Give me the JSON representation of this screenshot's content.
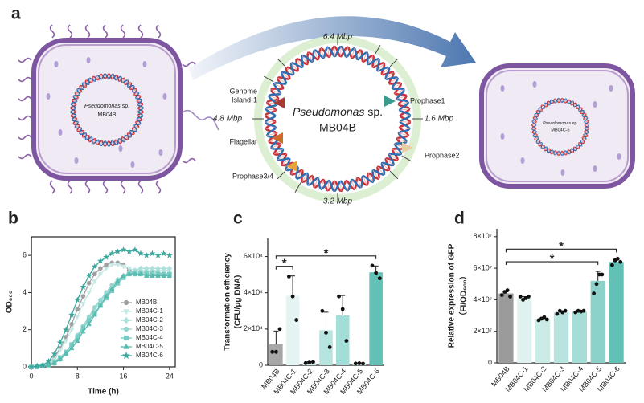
{
  "panel_labels": [
    "a",
    "b",
    "c",
    "d"
  ],
  "diagram": {
    "left_cell": {
      "genus": "Pseudomonas",
      "suffix": "sp.",
      "strain": "MB04B"
    },
    "genome": {
      "genus": "Pseudomonas",
      "suffix": "sp.",
      "strain": "MB04B",
      "positions": [
        "6.4 Mbp",
        "1.6 Mbp",
        "3.2 Mbp",
        "4.8 Mbp"
      ],
      "regions": [
        {
          "label": [
            "Genome",
            "Island-1"
          ],
          "color": "#a83a36"
        },
        {
          "label": [
            "Flagellar"
          ],
          "color": "#d26a2a"
        },
        {
          "label": [
            "Prophase3/4"
          ],
          "color": "#e8a33a"
        },
        {
          "label": [
            "Prophase1"
          ],
          "color": "#3a9a8e"
        },
        {
          "label": [
            "Prophase2"
          ],
          "color": "#e6cfa6"
        }
      ]
    },
    "right_cell": {
      "genus": "Pseudomonas",
      "suffix": "sp.",
      "strain": "MB04C-6"
    }
  },
  "chart_data": [
    {
      "type": "line",
      "ylabel": "OD₆₀₀",
      "xlabel": "Time (h)",
      "x": [
        0,
        1,
        2,
        3,
        4,
        5,
        6,
        7,
        8,
        9,
        10,
        11,
        12,
        13,
        14,
        15,
        16,
        17,
        18,
        19,
        20,
        21,
        22,
        23,
        24
      ],
      "xlim": [
        0,
        25
      ],
      "xticks": [
        0,
        8,
        16,
        24
      ],
      "ylim": [
        0,
        7
      ],
      "yticks": [
        0,
        2,
        4,
        6
      ],
      "legend": "lower right",
      "series": [
        {
          "name": "MB04B",
          "color": "#a0a0a0",
          "marker": "circle",
          "values": [
            0,
            0.05,
            0.1,
            0.2,
            0.5,
            1,
            1.6,
            2.3,
            3.1,
            3.8,
            4.5,
            5.0,
            5.3,
            5.5,
            5.6,
            5.6,
            5.5,
            5.2,
            5.0,
            5.0,
            5.0,
            5.0,
            5.0,
            5.0,
            5.0
          ]
        },
        {
          "name": "MB04C-1",
          "color": "#c4e8e4",
          "marker": "triangle-down",
          "values": [
            0,
            0.05,
            0.1,
            0.2,
            0.4,
            0.9,
            1.4,
            2.0,
            2.7,
            3.4,
            4.0,
            4.6,
            5.0,
            5.3,
            5.5,
            5.5,
            5.4,
            5.3,
            5.2,
            5.2,
            5.2,
            5.2,
            5.2,
            5.2,
            5.2
          ]
        },
        {
          "name": "MB04C-2",
          "color": "#ace0db",
          "marker": "diamond",
          "values": [
            0,
            0,
            0.05,
            0.1,
            0.2,
            0.4,
            0.7,
            1.1,
            1.6,
            2.1,
            2.6,
            3.1,
            3.5,
            3.9,
            4.3,
            4.6,
            4.9,
            5.1,
            5.2,
            5.3,
            5.3,
            5.3,
            5.3,
            5.3,
            5.3
          ]
        },
        {
          "name": "MB04C-3",
          "color": "#93d6cf",
          "marker": "circle",
          "values": [
            0,
            0,
            0.05,
            0.1,
            0.3,
            0.5,
            0.8,
            1.2,
            1.7,
            2.2,
            2.7,
            3.2,
            3.6,
            4.0,
            4.4,
            4.7,
            4.9,
            5.0,
            5.1,
            5.1,
            5.1,
            5.1,
            5.1,
            5.0,
            5.0
          ]
        },
        {
          "name": "MB04C-4",
          "color": "#78cbc2",
          "marker": "square",
          "values": [
            0,
            0,
            0.05,
            0.1,
            0.2,
            0.5,
            0.8,
            1.2,
            1.6,
            2.1,
            2.5,
            2.9,
            3.3,
            3.7,
            4.1,
            4.5,
            4.8,
            5.0,
            5.0,
            5.0,
            5.0,
            5.0,
            5.0,
            5.0,
            5.0
          ]
        },
        {
          "name": "MB04C-5",
          "color": "#58bcb1",
          "marker": "triangle",
          "values": [
            0,
            0,
            0.05,
            0.1,
            0.2,
            0.4,
            0.7,
            1.0,
            1.4,
            1.9,
            2.3,
            2.8,
            3.3,
            3.8,
            4.2,
            4.6,
            4.9,
            5.0,
            5.0,
            5.0,
            4.9,
            4.9,
            4.9,
            4.9,
            4.9
          ]
        },
        {
          "name": "MB04C-6",
          "color": "#3aa89d",
          "marker": "star",
          "values": [
            0,
            0.05,
            0.1,
            0.3,
            0.7,
            1.3,
            2.0,
            2.8,
            3.6,
            4.3,
            4.9,
            5.4,
            5.7,
            5.9,
            6.1,
            6.2,
            6.3,
            6.2,
            6.3,
            6.1,
            6.0,
            6.1,
            6.0,
            6.1,
            6.0
          ]
        }
      ]
    },
    {
      "type": "bar",
      "ylabel": [
        "Transformation efficiency",
        "(CFU/μg DNA)"
      ],
      "categories": [
        "MB04B",
        "MB04C-1",
        "MB04C-2",
        "MB04C-3",
        "MB04C-4",
        "MB04C-5",
        "MB04C-6"
      ],
      "values": [
        11600,
        38300,
        1500,
        19300,
        27500,
        1000,
        51300
      ],
      "errors": [
        7300,
        11000,
        500,
        10000,
        11000,
        300,
        3500
      ],
      "points": [
        [
          7400,
          7400,
          20000
        ],
        [
          49000,
          38000,
          25000
        ],
        [
          1200,
          1500,
          1800
        ],
        [
          30000,
          18000,
          10000
        ],
        [
          38000,
          31000,
          13500
        ],
        [
          980,
          1100,
          900
        ],
        [
          55000,
          51000,
          48000
        ]
      ],
      "colors": [
        "#a6a6a6",
        "#e4f4f2",
        "#d3eeeb",
        "#b6e5e0",
        "#a3ddd7",
        "#d4efec",
        "#63c0b6"
      ],
      "ylim": [
        0,
        70000
      ],
      "yticks": [
        0,
        {
          "value": 20000,
          "label": "2×10⁴"
        },
        {
          "value": 40000,
          "label": "4×10⁴"
        },
        {
          "value": 60000,
          "label": "6×10⁴"
        }
      ],
      "significance": [
        {
          "from": 0,
          "to": 1,
          "label": "*"
        },
        {
          "from": 0,
          "to": 6,
          "label": "*"
        }
      ]
    },
    {
      "type": "bar",
      "ylabel": [
        "Relative expression of GFP",
        "（FI/OD₆₀₀）"
      ],
      "categories": [
        "MB04B",
        "MB04C-1",
        "MB04C-2",
        "MB04C-3",
        "MB04C-4",
        "MB04C-5",
        "MB04C-6"
      ],
      "values": [
        44000000,
        41000000,
        28000000,
        32000000,
        32500000,
        52000000,
        64000000
      ],
      "errors": [
        1800000,
        1000000,
        900000,
        1000000,
        500000,
        6000000,
        1800000
      ],
      "points": [
        [
          43000000,
          45000000,
          46000000,
          42000000
        ],
        [
          42000000,
          40000000,
          41000000,
          42000000
        ],
        [
          27000000,
          28000000,
          29000000,
          27500000
        ],
        [
          31000000,
          33000000,
          32000000,
          33000000
        ],
        [
          32000000,
          33000000,
          32500000,
          33000000
        ],
        [
          44000000,
          50000000,
          56000000,
          56000000
        ],
        [
          62000000,
          65000000,
          66000000,
          64000000
        ]
      ],
      "colors": [
        "#9b9b9b",
        "#dff2ef",
        "#cbebe7",
        "#b7e4df",
        "#a5ddd7",
        "#8dd2ca",
        "#62c1b6"
      ],
      "ylim": [
        0,
        85000000
      ],
      "yticks": [
        0,
        {
          "value": 20000000,
          "label": "2×10⁷"
        },
        {
          "value": 40000000,
          "label": "4×10⁷"
        },
        {
          "value": 60000000,
          "label": "6×10⁷"
        },
        {
          "value": 80000000,
          "label": "8×10⁷"
        }
      ],
      "significance": [
        {
          "from": 0,
          "to": 5,
          "label": "*"
        },
        {
          "from": 0,
          "to": 6,
          "label": "*"
        }
      ]
    }
  ]
}
